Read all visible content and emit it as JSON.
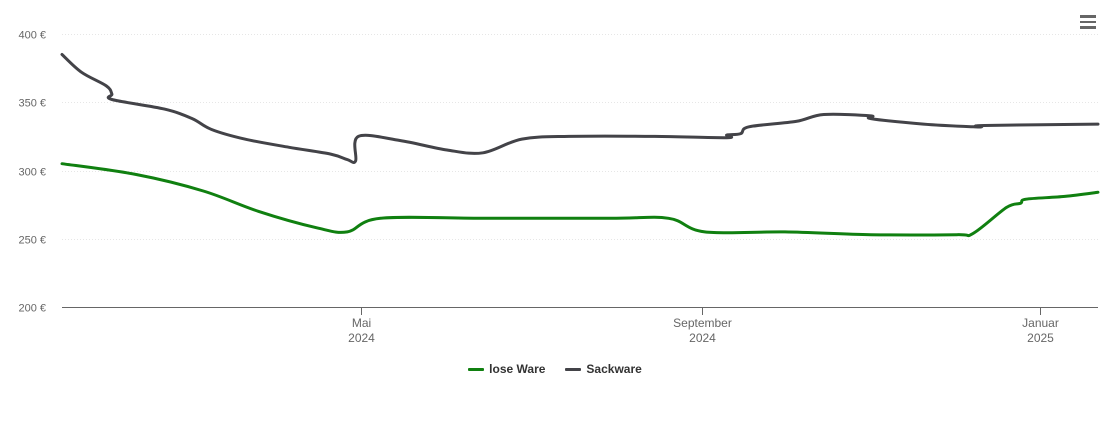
{
  "chart_data": {
    "type": "line",
    "title": "",
    "xlabel": "",
    "ylabel": "",
    "y_unit": "€",
    "ylim": [
      200,
      400
    ],
    "y_ticks": [
      "200 €",
      "250 €",
      "300 €",
      "350 €",
      "400 €"
    ],
    "y_tick_values": [
      200,
      250,
      300,
      350,
      400
    ],
    "x_range": [
      "2024-01-14",
      "2025-01-22"
    ],
    "x_ticks": [
      {
        "date": "2024-05-01",
        "line1": "Mai",
        "line2": "2024"
      },
      {
        "date": "2024-09-01",
        "line1": "September",
        "line2": "2024"
      },
      {
        "date": "2025-01-01",
        "line1": "Januar",
        "line2": "2025"
      }
    ],
    "grid": true,
    "legend_position": "bottom-center",
    "series": [
      {
        "name": "lose Ware",
        "color": "#108010",
        "points": [
          [
            "2024-01-14",
            305
          ],
          [
            "2024-02-10",
            297
          ],
          [
            "2024-03-05",
            285
          ],
          [
            "2024-03-25",
            270
          ],
          [
            "2024-04-15",
            258
          ],
          [
            "2024-04-26",
            255
          ],
          [
            "2024-05-08",
            265
          ],
          [
            "2024-06-15",
            265
          ],
          [
            "2024-07-30",
            265
          ],
          [
            "2024-08-20",
            265
          ],
          [
            "2024-09-02",
            255
          ],
          [
            "2024-10-01",
            255
          ],
          [
            "2024-11-01",
            253
          ],
          [
            "2024-12-02",
            253
          ],
          [
            "2024-12-08",
            254
          ],
          [
            "2024-12-20",
            273
          ],
          [
            "2024-12-25",
            276
          ],
          [
            "2024-12-27",
            279
          ],
          [
            "2025-01-10",
            281
          ],
          [
            "2025-01-22",
            284
          ]
        ]
      },
      {
        "name": "Sackware",
        "color": "#434348",
        "points": [
          [
            "2024-01-14",
            385
          ],
          [
            "2024-01-21",
            372
          ],
          [
            "2024-01-30",
            362
          ],
          [
            "2024-02-01",
            356
          ],
          [
            "2024-02-01",
            352
          ],
          [
            "2024-02-20",
            345
          ],
          [
            "2024-03-01",
            338
          ],
          [
            "2024-03-08",
            330
          ],
          [
            "2024-03-20",
            323
          ],
          [
            "2024-04-05",
            317
          ],
          [
            "2024-04-20",
            312
          ],
          [
            "2024-04-26",
            308
          ],
          [
            "2024-04-29",
            307
          ],
          [
            "2024-04-30",
            325
          ],
          [
            "2024-05-15",
            322
          ],
          [
            "2024-06-01",
            315
          ],
          [
            "2024-06-14",
            313
          ],
          [
            "2024-06-28",
            323
          ],
          [
            "2024-07-15",
            325
          ],
          [
            "2024-08-15",
            325
          ],
          [
            "2024-09-10",
            324
          ],
          [
            "2024-09-10",
            326
          ],
          [
            "2024-09-15",
            327
          ],
          [
            "2024-09-18",
            332
          ],
          [
            "2024-10-05",
            336
          ],
          [
            "2024-10-15",
            341
          ],
          [
            "2024-11-01",
            340
          ],
          [
            "2024-11-01",
            338
          ],
          [
            "2024-11-20",
            334
          ],
          [
            "2024-12-08",
            332
          ],
          [
            "2024-12-11",
            332
          ],
          [
            "2024-12-12",
            333
          ],
          [
            "2025-01-22",
            334
          ]
        ]
      }
    ]
  },
  "icons": {
    "menu": "hamburger-menu-icon"
  }
}
